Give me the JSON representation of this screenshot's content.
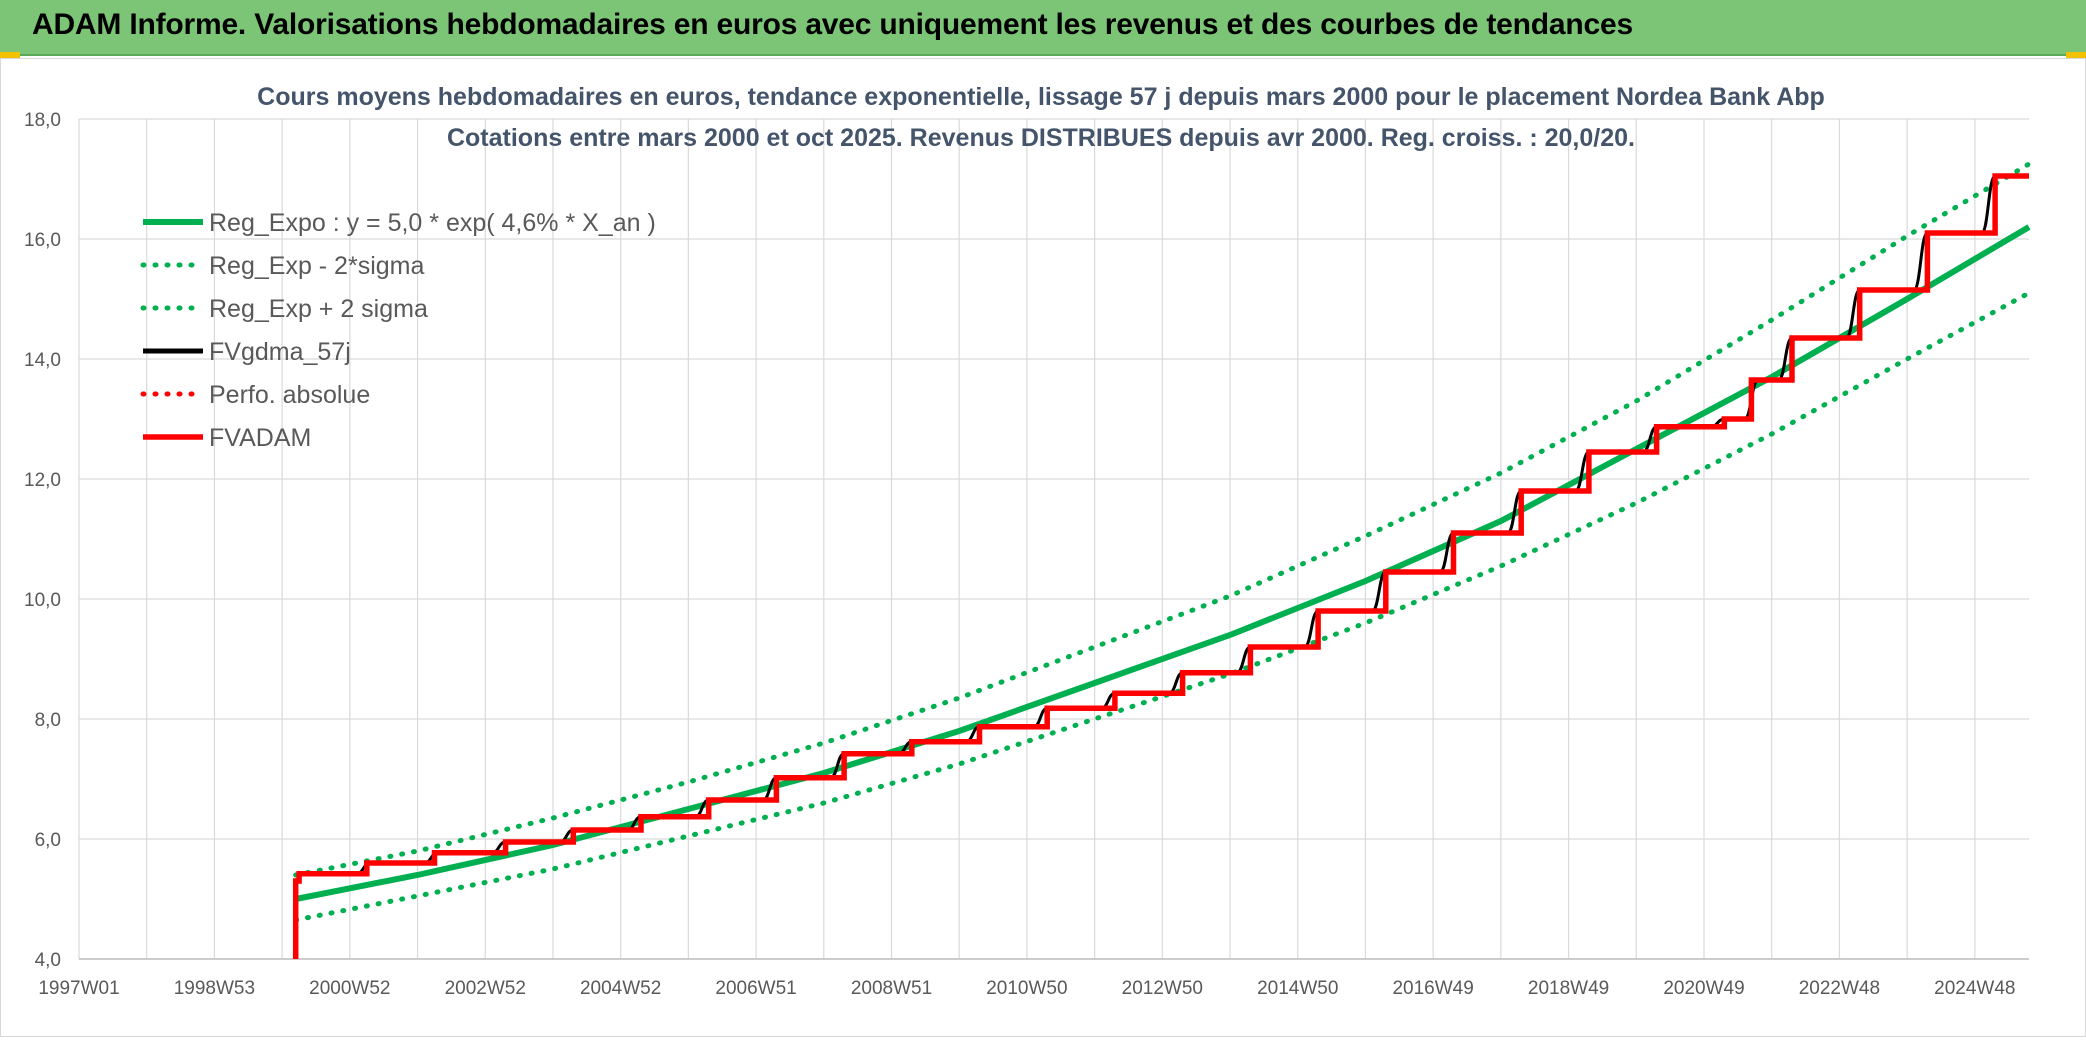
{
  "header": {
    "title": "ADAM Informe. Valorisations hebdomadaires en euros avec uniquement les revenus et des courbes de tendances"
  },
  "colors": {
    "header_bg": "#7cc576",
    "reg_expo": "#00b050",
    "fvgdma": "#000000",
    "fvadam": "#ff0000",
    "accent_corner": "#f2c200"
  },
  "chart_data": {
    "type": "line",
    "title": "Cours moyens hebdomadaires en euros, tendance exponentielle, lissage 57 j depuis mars 2000 pour le placement Nordea Bank Abp",
    "subtitle": "Cotations entre mars 2000 et oct 2025. Revenus DISTRIBUES depuis avr 2000. Reg. croiss. : 20,0/20.",
    "xlabel": "",
    "ylabel": "",
    "ylim": [
      4.0,
      18.0
    ],
    "xlim": [
      1997.0,
      2025.8
    ],
    "grid": true,
    "legend_position": "top-left",
    "y_ticks": [
      "4,0",
      "6,0",
      "8,0",
      "10,0",
      "12,0",
      "14,0",
      "16,0",
      "18,0"
    ],
    "x_ticks": [
      {
        "label": "1997W01",
        "x": 1997.0
      },
      {
        "label": "1998W53",
        "x": 1999.0
      },
      {
        "label": "2000W52",
        "x": 2001.0
      },
      {
        "label": "2002W52",
        "x": 2003.0
      },
      {
        "label": "2004W52",
        "x": 2005.0
      },
      {
        "label": "2006W51",
        "x": 2007.0
      },
      {
        "label": "2008W51",
        "x": 2009.0
      },
      {
        "label": "2010W50",
        "x": 2011.0
      },
      {
        "label": "2012W50",
        "x": 2013.0
      },
      {
        "label": "2014W50",
        "x": 2015.0
      },
      {
        "label": "2016W49",
        "x": 2017.0
      },
      {
        "label": "2018W49",
        "x": 2019.0
      },
      {
        "label": "2020W49",
        "x": 2021.0
      },
      {
        "label": "2022W48",
        "x": 2023.0
      },
      {
        "label": "2024W48",
        "x": 2025.0
      }
    ],
    "series": [
      {
        "name": "Reg_Expo : y = 5,0 * exp( 4,6% *  X_an )",
        "style": "solid",
        "color": "#00b050",
        "x": [
          2000.2,
          2002.0,
          2004.0,
          2006.0,
          2008.0,
          2010.0,
          2012.0,
          2014.0,
          2016.0,
          2018.0,
          2020.0,
          2022.0,
          2024.0,
          2025.8
        ],
        "y": [
          5.0,
          5.4,
          5.9,
          6.5,
          7.1,
          7.8,
          8.6,
          9.4,
          10.3,
          11.3,
          12.5,
          13.7,
          15.0,
          16.2
        ]
      },
      {
        "name": "Reg_Exp - 2*sigma",
        "style": "dotted",
        "color": "#00b050",
        "x": [
          2000.2,
          2002.0,
          2004.0,
          2006.0,
          2008.0,
          2010.0,
          2012.0,
          2014.0,
          2016.0,
          2018.0,
          2020.0,
          2022.0,
          2024.0,
          2025.8
        ],
        "y": [
          4.65,
          5.05,
          5.5,
          6.05,
          6.6,
          7.25,
          8.0,
          8.75,
          9.6,
          10.55,
          11.6,
          12.75,
          14.0,
          15.1
        ]
      },
      {
        "name": "Reg_Exp + 2 sigma",
        "style": "dotted",
        "color": "#00b050",
        "x": [
          2000.2,
          2002.0,
          2004.0,
          2006.0,
          2008.0,
          2010.0,
          2012.0,
          2014.0,
          2016.0,
          2018.0,
          2020.0,
          2022.0,
          2024.0,
          2025.8
        ],
        "y": [
          5.4,
          5.8,
          6.35,
          6.95,
          7.6,
          8.35,
          9.2,
          10.05,
          11.05,
          12.1,
          13.3,
          14.65,
          16.05,
          17.25
        ]
      },
      {
        "name": "FVgdma_57j",
        "style": "solid",
        "color": "#000000",
        "x": [
          2000.2,
          2000.3,
          2001.1,
          2001.3,
          2002.1,
          2002.3,
          2003.1,
          2003.3,
          2004.1,
          2004.3,
          2005.1,
          2005.3,
          2006.1,
          2006.3,
          2007.1,
          2007.3,
          2008.1,
          2008.3,
          2009.1,
          2009.3,
          2010.1,
          2010.3,
          2011.1,
          2011.3,
          2012.1,
          2012.3,
          2013.1,
          2013.3,
          2014.1,
          2014.3,
          2015.1,
          2015.3,
          2016.1,
          2016.3,
          2017.1,
          2017.3,
          2018.1,
          2018.3,
          2019.1,
          2019.3,
          2020.1,
          2020.3,
          2021.1,
          2021.3,
          2021.6,
          2021.8,
          2022.1,
          2022.3,
          2023.1,
          2023.3,
          2024.1,
          2024.3,
          2025.1,
          2025.3,
          2025.8
        ],
        "y": [
          5.3,
          5.42,
          5.42,
          5.6,
          5.6,
          5.77,
          5.77,
          5.95,
          5.95,
          6.15,
          6.15,
          6.37,
          6.37,
          6.65,
          6.65,
          7.02,
          7.02,
          7.42,
          7.42,
          7.62,
          7.62,
          7.87,
          7.87,
          8.18,
          8.18,
          8.43,
          8.43,
          8.77,
          8.77,
          9.2,
          9.2,
          9.8,
          9.8,
          10.45,
          10.45,
          11.1,
          11.1,
          11.8,
          11.8,
          12.45,
          12.45,
          12.87,
          12.87,
          13.0,
          13.0,
          13.65,
          13.65,
          14.35,
          14.35,
          15.15,
          15.15,
          16.1,
          16.1,
          17.05,
          17.05
        ]
      },
      {
        "name": "Perfo. absolue",
        "style": "dotted",
        "color": "#ff0000",
        "x": [],
        "y": []
      },
      {
        "name": "FVADAM",
        "style": "step",
        "color": "#ff0000",
        "x": [
          2000.2,
          2000.2,
          2000.25,
          2000.25,
          2001.25,
          2001.25,
          2002.25,
          2002.25,
          2003.3,
          2003.3,
          2004.3,
          2004.3,
          2005.3,
          2005.3,
          2006.3,
          2006.3,
          2007.3,
          2007.3,
          2008.3,
          2008.3,
          2009.3,
          2009.3,
          2010.3,
          2010.3,
          2011.3,
          2011.3,
          2012.3,
          2012.3,
          2013.3,
          2013.3,
          2014.3,
          2014.3,
          2015.3,
          2015.3,
          2016.3,
          2016.3,
          2017.3,
          2017.3,
          2018.3,
          2018.3,
          2019.3,
          2019.3,
          2020.3,
          2020.3,
          2021.3,
          2021.3,
          2021.7,
          2021.7,
          2022.3,
          2022.3,
          2023.3,
          2023.3,
          2024.3,
          2024.3,
          2025.3,
          2025.3,
          2025.8
        ],
        "y": [
          4.0,
          5.3,
          5.3,
          5.42,
          5.42,
          5.6,
          5.6,
          5.77,
          5.77,
          5.95,
          5.95,
          6.15,
          6.15,
          6.37,
          6.37,
          6.65,
          6.65,
          7.02,
          7.02,
          7.42,
          7.42,
          7.62,
          7.62,
          7.87,
          7.87,
          8.18,
          8.18,
          8.43,
          8.43,
          8.77,
          8.77,
          9.2,
          9.2,
          9.8,
          9.8,
          10.45,
          10.45,
          11.1,
          11.1,
          11.8,
          11.8,
          12.45,
          12.45,
          12.87,
          12.87,
          13.0,
          13.0,
          13.65,
          13.65,
          14.35,
          14.35,
          15.15,
          15.15,
          16.1,
          16.1,
          17.05,
          17.05
        ]
      }
    ]
  }
}
